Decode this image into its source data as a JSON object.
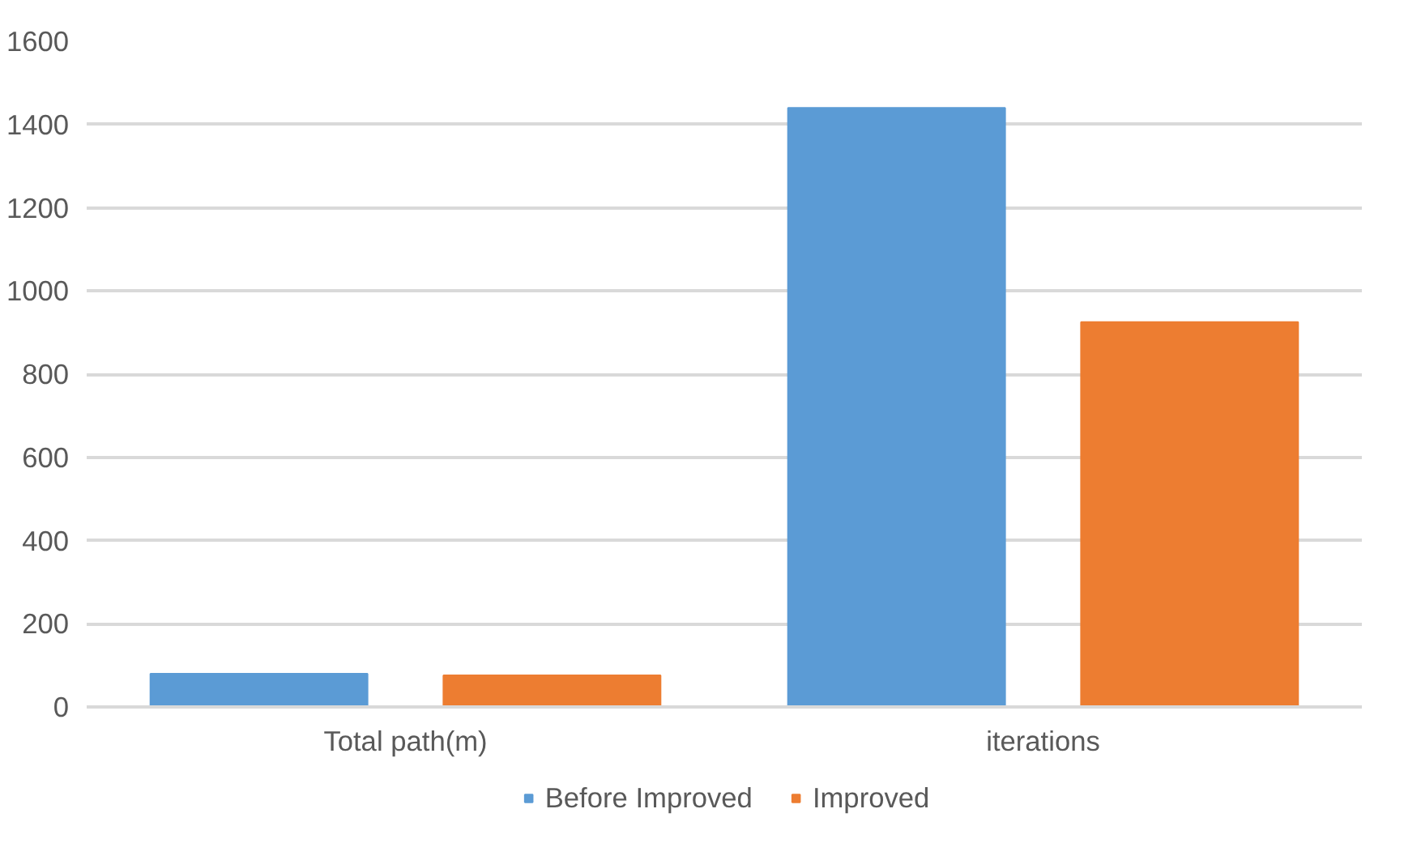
{
  "chart_data": {
    "type": "bar",
    "categories": [
      "Total path(m)",
      "iterations"
    ],
    "series": [
      {
        "name": "Before Improved",
        "color": "#5b9bd5",
        "values": [
          80,
          1440
        ]
      },
      {
        "name": "Improved",
        "color": "#ed7d31",
        "values": [
          76,
          925
        ]
      }
    ],
    "ylim": [
      0,
      1600
    ],
    "yticks": [
      0,
      200,
      400,
      600,
      800,
      1000,
      1200,
      1400,
      1600
    ],
    "grid": "y",
    "legend": "bottom"
  }
}
